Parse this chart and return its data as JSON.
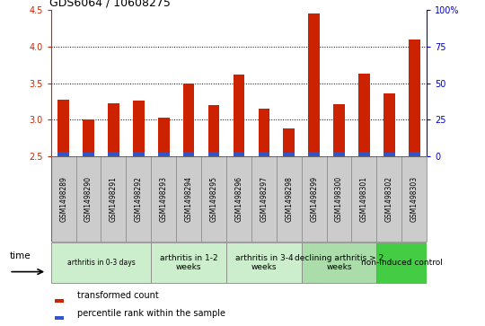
{
  "title": "GDS6064 / 10608275",
  "samples": [
    "GSM1498289",
    "GSM1498290",
    "GSM1498291",
    "GSM1498292",
    "GSM1498293",
    "GSM1498294",
    "GSM1498295",
    "GSM1498296",
    "GSM1498297",
    "GSM1498298",
    "GSM1498299",
    "GSM1498300",
    "GSM1498301",
    "GSM1498302",
    "GSM1498303"
  ],
  "transformed_count": [
    3.27,
    3.0,
    3.23,
    3.26,
    3.03,
    3.5,
    3.2,
    3.62,
    3.15,
    2.88,
    4.45,
    3.21,
    3.63,
    3.36,
    4.1
  ],
  "percentile_rank_height": [
    0.065,
    0.055,
    0.065,
    0.065,
    0.055,
    0.065,
    0.065,
    0.065,
    0.065,
    0.055,
    0.065,
    0.065,
    0.065,
    0.055,
    0.065
  ],
  "bar_bottom": 2.5,
  "ylim": [
    2.5,
    4.5
  ],
  "yticks": [
    2.5,
    3.0,
    3.5,
    4.0,
    4.5
  ],
  "right_yticks": [
    0,
    25,
    50,
    75,
    100
  ],
  "bar_color_red": "#CC2200",
  "bar_color_blue": "#3355CC",
  "bar_width": 0.45,
  "groups": [
    {
      "label": "arthritis in 0-3 days",
      "indices": [
        0,
        1,
        2,
        3
      ],
      "color": "#CCEECC",
      "font_small": true
    },
    {
      "label": "arthritis in 1-2\nweeks",
      "indices": [
        4,
        5,
        6
      ],
      "color": "#CCEECC",
      "font_small": false
    },
    {
      "label": "arthritis in 3-4\nweeks",
      "indices": [
        7,
        8,
        9
      ],
      "color": "#CCEECC",
      "font_small": false
    },
    {
      "label": "declining arthritis > 2\nweeks",
      "indices": [
        10,
        11,
        12
      ],
      "color": "#AADDAA",
      "font_small": false
    },
    {
      "label": "non-induced control",
      "indices": [
        13,
        14
      ],
      "color": "#44CC44",
      "font_small": false
    }
  ],
  "legend_red": "transformed count",
  "legend_blue": "percentile rank within the sample",
  "time_label": "time",
  "grid_lines": [
    3.0,
    3.5,
    4.0
  ],
  "title_fontsize": 9,
  "tick_fontsize": 7,
  "label_fontsize": 5.5,
  "group_fontsize": 6.5
}
